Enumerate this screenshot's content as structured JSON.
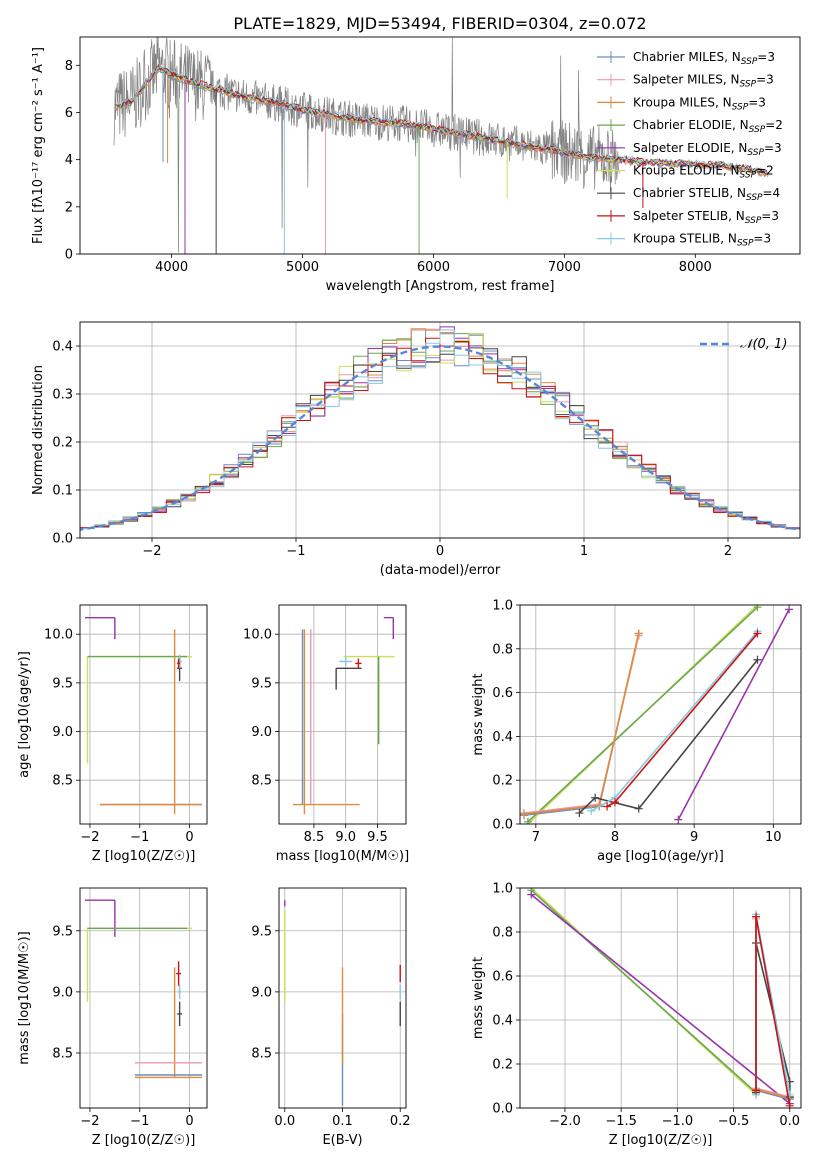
{
  "figure_title": "PLATE=1829, MJD=53494, FIBERID=0304, z=0.072",
  "colors": {
    "chabrier_miles": "#6c8ebf",
    "salpeter_miles": "#e89ab0",
    "kroupa_miles": "#e08a3c",
    "chabrier_elodie": "#6aa84f",
    "salpeter_elodie": "#9933aa",
    "kroupa_elodie": "#c8e05a",
    "chabrier_stelib": "#444444",
    "salpeter_stelib": "#cc1111",
    "kroupa_stelib": "#88c8e0",
    "data_gray": "#808080",
    "gauss": "#5a86d6",
    "grid": "#b0b0b0"
  },
  "chart_data": [
    {
      "id": "spectrum",
      "type": "line",
      "title": "PLATE=1829, MJD=53494, FIBERID=0304, z=0.072",
      "xlabel": "wavelength [Angstrom, rest frame]",
      "ylabel": "Flux [fλ10⁻¹⁷ erg cm⁻² s⁻¹ A⁻¹]",
      "xlim": [
        3300,
        8800
      ],
      "ylim": [
        0,
        9.2
      ],
      "xticks": [
        4000,
        5000,
        6000,
        7000,
        8000
      ],
      "yticks": [
        0,
        2,
        4,
        6,
        8
      ],
      "grid": false,
      "legend_position": "top-right",
      "continuum": {
        "x": [
          3560,
          3700,
          3800,
          3900,
          4000,
          4200,
          4400,
          4600,
          4800,
          5000,
          5200,
          5400,
          5600,
          5800,
          6000,
          6200,
          6400,
          6600,
          6800,
          7000,
          7200,
          7400,
          7600,
          7800,
          8000,
          8200,
          8400,
          8560
        ],
        "y": [
          6.2,
          6.5,
          7.2,
          7.9,
          7.6,
          7.2,
          6.9,
          6.6,
          6.4,
          6.1,
          5.9,
          5.7,
          5.6,
          5.5,
          5.3,
          5.1,
          4.9,
          4.7,
          4.5,
          4.3,
          4.1,
          4.0,
          3.9,
          3.85,
          3.8,
          3.75,
          3.6,
          3.4
        ]
      },
      "absorption_lines": [
        3934,
        3969,
        4102,
        4340,
        4861,
        5175,
        5890,
        6563,
        7600
      ],
      "legend": [
        "Chabrier MILES, N_SSP=3",
        "Salpeter MILES, N_SSP=3",
        "Kroupa MILES, N_SSP=3",
        "Chabrier ELODIE, N_SSP=2",
        "Salpeter ELODIE, N_SSP=3",
        "Kroupa ELODIE, N_SSP=2",
        "Chabrier STELIB, N_SSP=4",
        "Salpeter STELIB, N_SSP=3",
        "Kroupa STELIB, N_SSP=3"
      ]
    },
    {
      "id": "residuals",
      "type": "line",
      "title": "",
      "xlabel": "(data-model)/error",
      "ylabel": "Normed distribution",
      "xlim": [
        -2.5,
        2.5
      ],
      "ylim": [
        0,
        0.45
      ],
      "xticks": [
        -2,
        -1,
        0,
        1,
        2
      ],
      "yticks": [
        0.0,
        0.1,
        0.2,
        0.3,
        0.4
      ],
      "grid": true,
      "legend_position": "top-right",
      "gauss_label": "𝒩(0, 1)",
      "bin_width": 0.1
    },
    {
      "id": "age_vs_z",
      "type": "scatter",
      "xlabel": "Z [log10(Z/Z☉)]",
      "ylabel": "age  [log10(age/yr)]",
      "xlim": [
        -2.2,
        0.35
      ],
      "ylim": [
        8.05,
        10.3
      ],
      "xticks": [
        -2,
        -1,
        0
      ],
      "yticks": [
        8.5,
        9.0,
        9.5,
        10.0
      ],
      "grid": true,
      "errorbars": [
        {
          "series": "Salpeter ELODIE",
          "x": -1.5,
          "xerr": [
            0.6,
            0.0
          ],
          "y": 10.17,
          "yerr": [
            0.22,
            0.0
          ]
        },
        {
          "series": "Kroupa ELODIE",
          "x": -2.05,
          "xerr": [
            0.0,
            2.1
          ],
          "y": 9.77,
          "yerr": [
            1.1,
            0.0
          ]
        },
        {
          "series": "Chabrier ELODIE",
          "x": -2.05,
          "xerr": [
            0.0,
            2.0
          ],
          "y": 9.77,
          "yerr": [
            0.0,
            0.0
          ]
        },
        {
          "series": "Chabrier STELIB",
          "x": -0.2,
          "xerr": [
            0.05,
            0.05
          ],
          "y": 9.65,
          "yerr": [
            0.13,
            0.13
          ]
        },
        {
          "series": "Kroupa STELIB",
          "x": -0.2,
          "xerr": [
            0.05,
            0.05
          ],
          "y": 9.72,
          "yerr": [
            0.07,
            0.07
          ]
        },
        {
          "series": "Salpeter STELIB",
          "x": -0.22,
          "xerr": [
            0.03,
            0.03
          ],
          "y": 9.7,
          "yerr": [
            0.05,
            0.05
          ]
        },
        {
          "series": "Kroupa MILES",
          "x": -0.3,
          "xerr": [
            0.0,
            0.0
          ],
          "y": 8.25,
          "yerr": [
            0.1,
            1.8
          ]
        },
        {
          "series": "Chabrier MILES",
          "x": -0.3,
          "xerr": [
            1.5,
            0.55
          ],
          "y": 8.25,
          "yerr": [
            0.0,
            0.0
          ]
        },
        {
          "series": "Salpeter MILES",
          "x": -0.3,
          "xerr": [
            1.5,
            0.55
          ],
          "y": 8.25,
          "yerr": [
            0.0,
            0.0
          ]
        },
        {
          "series": "Kroupa MILES",
          "x": -0.3,
          "xerr": [
            1.5,
            0.55
          ],
          "y": 8.25,
          "yerr": [
            0.0,
            0.0
          ]
        }
      ]
    },
    {
      "id": "age_vs_mass",
      "type": "scatter",
      "xlabel": "mass [log10(M/M☉)]",
      "ylabel": "",
      "xlim": [
        7.95,
        9.95
      ],
      "ylim": [
        8.05,
        10.3
      ],
      "xticks": [
        8.5,
        9.0,
        9.5
      ],
      "yticks": [
        8.5,
        9.0,
        9.5,
        10.0
      ],
      "grid": true,
      "errorbars": [
        {
          "series": "Salpeter ELODIE",
          "x": 9.75,
          "xerr": [
            0.15,
            0.0
          ],
          "y": 10.17,
          "yerr": [
            0.22,
            0.0
          ]
        },
        {
          "series": "Kroupa ELODIE",
          "x": 9.52,
          "xerr": [
            0.55,
            0.25
          ],
          "y": 9.77,
          "yerr": [
            0.9,
            0.0
          ]
        },
        {
          "series": "Chabrier ELODIE",
          "x": 9.52,
          "xerr": [
            0.0,
            0.0
          ],
          "y": 9.77,
          "yerr": [
            0.9,
            0.0
          ]
        },
        {
          "series": "Chabrier STELIB",
          "x": 8.85,
          "xerr": [
            0.0,
            0.4
          ],
          "y": 9.65,
          "yerr": [
            0.22,
            0.0
          ]
        },
        {
          "series": "Kroupa STELIB",
          "x": 9.0,
          "xerr": [
            0.1,
            0.1
          ],
          "y": 9.72,
          "yerr": [
            0.05,
            0.05
          ]
        },
        {
          "series": "Salpeter STELIB",
          "x": 9.2,
          "xerr": [
            0.05,
            0.05
          ],
          "y": 9.7,
          "yerr": [
            0.05,
            0.05
          ]
        },
        {
          "series": "Chabrier MILES",
          "x": 8.32,
          "xerr": [
            0.0,
            0.0
          ],
          "y": 8.25,
          "yerr": [
            0.0,
            1.8
          ]
        },
        {
          "series": "Kroupa MILES",
          "x": 8.35,
          "xerr": [
            0.0,
            0.0
          ],
          "y": 8.25,
          "yerr": [
            0.1,
            1.8
          ]
        },
        {
          "series": "Salpeter MILES",
          "x": 8.45,
          "xerr": [
            0.0,
            0.0
          ],
          "y": 8.25,
          "yerr": [
            0.0,
            1.8
          ]
        },
        {
          "series": "Kroupa MILES",
          "x": 8.32,
          "xerr": [
            0.15,
            0.9
          ],
          "y": 8.25,
          "yerr": [
            0.0,
            0.0
          ]
        }
      ]
    },
    {
      "id": "massweight_vs_age",
      "type": "line",
      "xlabel": "age  [log10(age/yr)]",
      "ylabel": "mass weight",
      "xlim": [
        6.8,
        10.35
      ],
      "ylim": [
        0,
        1
      ],
      "xticks": [
        7,
        8,
        9,
        10
      ],
      "yticks": [
        0.0,
        0.2,
        0.4,
        0.6,
        0.8,
        1.0
      ],
      "grid": true,
      "series": [
        {
          "name": "Kroupa ELODIE",
          "x": [
            6.9,
            9.8
          ],
          "y": [
            0.0,
            1.0
          ]
        },
        {
          "name": "Chabrier ELODIE",
          "x": [
            6.9,
            9.8
          ],
          "y": [
            0.01,
            0.99
          ]
        },
        {
          "name": "Salpeter ELODIE",
          "x": [
            8.8,
            10.2
          ],
          "y": [
            0.02,
            0.98
          ]
        },
        {
          "name": "Chabrier MILES",
          "x": [
            6.85,
            7.8,
            8.3
          ],
          "y": [
            0.04,
            0.08,
            0.87
          ]
        },
        {
          "name": "Salpeter MILES",
          "x": [
            6.85,
            7.8,
            8.3
          ],
          "y": [
            0.05,
            0.09,
            0.86
          ]
        },
        {
          "name": "Kroupa MILES",
          "x": [
            6.85,
            7.8,
            8.3
          ],
          "y": [
            0.045,
            0.085,
            0.87
          ]
        },
        {
          "name": "Chabrier STELIB",
          "x": [
            7.55,
            7.75,
            8.3,
            9.8
          ],
          "y": [
            0.05,
            0.12,
            0.07,
            0.75
          ]
        },
        {
          "name": "Kroupa STELIB",
          "x": [
            7.7,
            8.0,
            9.8
          ],
          "y": [
            0.06,
            0.12,
            0.88
          ]
        },
        {
          "name": "Salpeter STELIB",
          "x": [
            7.9,
            8.0,
            9.8
          ],
          "y": [
            0.08,
            0.1,
            0.87
          ]
        }
      ]
    },
    {
      "id": "mass_vs_z",
      "type": "scatter",
      "xlabel": "Z [log10(Z/Z☉)]",
      "ylabel": "mass [log10(M/M☉)]",
      "xlim": [
        -2.2,
        0.35
      ],
      "ylim": [
        8.05,
        9.85
      ],
      "xticks": [
        -2,
        -1,
        0
      ],
      "yticks": [
        8.5,
        9.0,
        9.5
      ],
      "grid": true,
      "errorbars": [
        {
          "series": "Salpeter ELODIE",
          "x": -1.5,
          "xerr": [
            0.6,
            0.0
          ],
          "y": 9.75,
          "yerr": [
            0.3,
            0.0
          ]
        },
        {
          "series": "Kroupa ELODIE",
          "x": -2.05,
          "xerr": [
            0.0,
            2.1
          ],
          "y": 9.52,
          "yerr": [
            0.6,
            0.0
          ]
        },
        {
          "series": "Chabrier ELODIE",
          "x": -2.05,
          "xerr": [
            0.0,
            2.0
          ],
          "y": 9.52,
          "yerr": [
            0.0,
            0.0
          ]
        },
        {
          "series": "Salpeter STELIB",
          "x": -0.22,
          "xerr": [
            0.05,
            0.05
          ],
          "y": 9.15,
          "yerr": [
            0.1,
            0.1
          ]
        },
        {
          "series": "Chabrier STELIB",
          "x": -0.2,
          "xerr": [
            0.05,
            0.05
          ],
          "y": 8.82,
          "yerr": [
            0.1,
            0.1
          ]
        },
        {
          "series": "Kroupa STELIB",
          "x": -0.2,
          "xerr": [
            0.03,
            0.03
          ],
          "y": 9.0,
          "yerr": [
            0.06,
            0.06
          ]
        },
        {
          "series": "Kroupa MILES",
          "x": -0.3,
          "xerr": [
            0.0,
            0.0
          ],
          "y": 8.3,
          "yerr": [
            0.0,
            0.9
          ]
        },
        {
          "series": "Salpeter MILES",
          "x": -0.3,
          "xerr": [
            0.8,
            0.55
          ],
          "y": 8.42,
          "yerr": [
            0.0,
            0.0
          ]
        },
        {
          "series": "Chabrier MILES",
          "x": -0.3,
          "xerr": [
            0.8,
            0.55
          ],
          "y": 8.32,
          "yerr": [
            0.0,
            0.0
          ]
        },
        {
          "series": "Kroupa MILES",
          "x": -0.3,
          "xerr": [
            0.8,
            0.55
          ],
          "y": 8.3,
          "yerr": [
            0.0,
            0.0
          ]
        }
      ]
    },
    {
      "id": "mass_vs_ebv",
      "type": "scatter",
      "xlabel": "E(B-V)",
      "ylabel": "",
      "xlim": [
        -0.01,
        0.21
      ],
      "ylim": [
        8.05,
        9.85
      ],
      "xticks": [
        0.0,
        0.1,
        0.2
      ],
      "yticks": [
        8.5,
        9.0,
        9.5
      ],
      "grid": true,
      "errorbars": [
        {
          "series": "Salpeter ELODIE",
          "x": 0.0,
          "xerr": [
            0.0,
            0.0
          ],
          "y": 9.75,
          "yerr": [
            0.05,
            0.0
          ]
        },
        {
          "series": "Kroupa ELODIE",
          "x": 0.0,
          "xerr": [
            0.0,
            0.0
          ],
          "y": 9.52,
          "yerr": [
            0.6,
            0.15
          ]
        },
        {
          "series": "Chabrier MILES",
          "x": 0.1,
          "xerr": [
            0.0,
            0.0
          ],
          "y": 8.32,
          "yerr": [
            0.25,
            0.5
          ]
        },
        {
          "series": "Kroupa MILES",
          "x": 0.1,
          "xerr": [
            0.0,
            0.0
          ],
          "y": 8.4,
          "yerr": [
            0.0,
            0.8
          ]
        },
        {
          "series": "Salpeter STELIB",
          "x": 0.2,
          "xerr": [
            0.0,
            0.0
          ],
          "y": 9.15,
          "yerr": [
            0.07,
            0.07
          ]
        },
        {
          "series": "Chabrier STELIB",
          "x": 0.2,
          "xerr": [
            0.0,
            0.0
          ],
          "y": 8.82,
          "yerr": [
            0.1,
            0.1
          ]
        },
        {
          "series": "Kroupa STELIB",
          "x": 0.2,
          "xerr": [
            0.0,
            0.0
          ],
          "y": 9.0,
          "yerr": [
            0.06,
            0.06
          ]
        }
      ]
    },
    {
      "id": "massweight_vs_z",
      "type": "line",
      "xlabel": "Z [log10(Z/Z☉)]",
      "ylabel": "mass weight",
      "xlim": [
        -2.4,
        0.1
      ],
      "ylim": [
        0,
        1
      ],
      "xticks": [
        -2.0,
        -1.5,
        -1.0,
        -0.5,
        0.0
      ],
      "yticks": [
        0.0,
        0.2,
        0.4,
        0.6,
        0.8,
        1.0
      ],
      "grid": true,
      "series": [
        {
          "name": "Kroupa ELODIE",
          "x": [
            -2.3,
            -0.3
          ],
          "y": [
            1.0,
            0.06
          ]
        },
        {
          "name": "Chabrier ELODIE",
          "x": [
            -2.3,
            -0.3
          ],
          "y": [
            0.99,
            0.07
          ]
        },
        {
          "name": "Salpeter ELODIE",
          "x": [
            -2.3,
            0.0
          ],
          "y": [
            0.97,
            0.02
          ]
        },
        {
          "name": "Chabrier MILES",
          "x": [
            -0.3,
            -0.3,
            0.0
          ],
          "y": [
            0.87,
            0.08,
            0.04
          ]
        },
        {
          "name": "Salpeter MILES",
          "x": [
            -0.3,
            -0.3,
            0.0
          ],
          "y": [
            0.86,
            0.09,
            0.05
          ]
        },
        {
          "name": "Kroupa MILES",
          "x": [
            -0.3,
            -0.3,
            0.0
          ],
          "y": [
            0.87,
            0.085,
            0.045
          ]
        },
        {
          "name": "Chabrier STELIB",
          "x": [
            -0.3,
            -0.3,
            0.0,
            0.0
          ],
          "y": [
            0.07,
            0.75,
            0.12,
            0.05
          ]
        },
        {
          "name": "Kroupa STELIB",
          "x": [
            -0.3,
            -0.3,
            0.0
          ],
          "y": [
            0.06,
            0.88,
            0.06
          ]
        },
        {
          "name": "Salpeter STELIB",
          "x": [
            -0.3,
            -0.3,
            0.0
          ],
          "y": [
            0.08,
            0.87,
            0.01
          ]
        }
      ]
    }
  ]
}
